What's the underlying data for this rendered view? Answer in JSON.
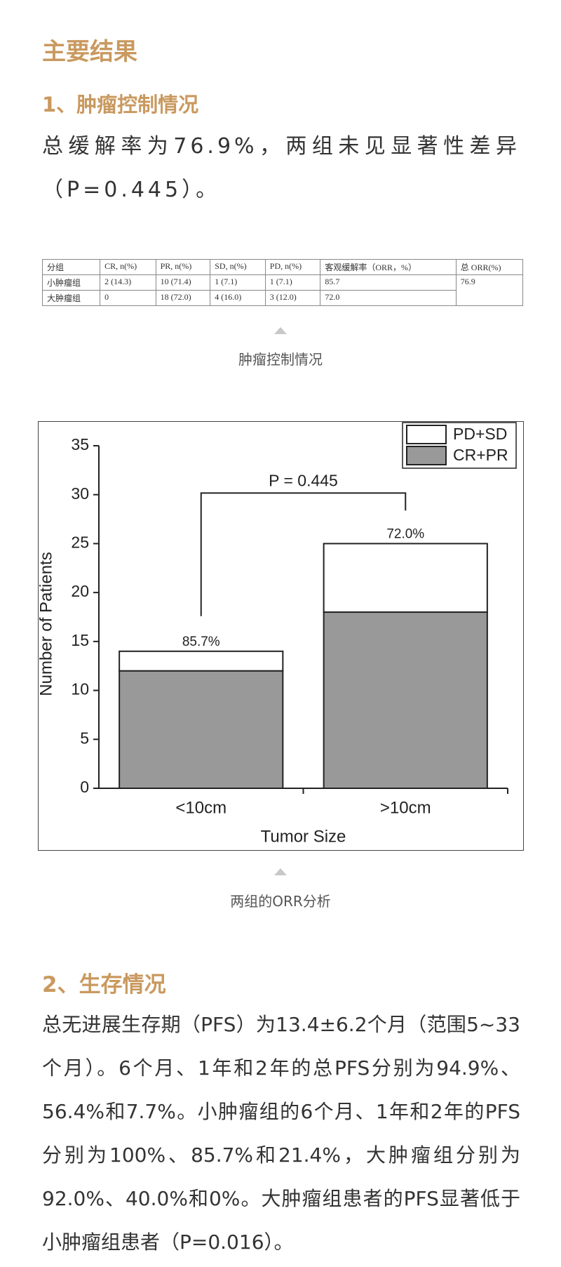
{
  "heading": "主要结果",
  "section1": {
    "title": "1、肿瘤控制情况",
    "paragraph": "总缓解率为76.9%，两组未见显著性差异（P=0.445）。"
  },
  "table": {
    "header": [
      "分组",
      "CR, n(%)",
      "PR, n(%)",
      "SD, n(%)",
      "PD, n(%)",
      "客观缓解率（ORR，%）",
      "总 ORR(%)"
    ],
    "rows": [
      [
        "小肿瘤组",
        "2 (14.3)",
        "10 (71.4)",
        "1 (7.1)",
        "1 (7.1)",
        "85.7",
        "76.9"
      ],
      [
        "大肿瘤组",
        "0",
        "18 (72.0)",
        "4 (16.0)",
        "3 (12.0)",
        "72.0"
      ]
    ]
  },
  "table_caption": "肿瘤控制情况",
  "chart_data": {
    "type": "bar",
    "stacked": true,
    "xlabel": "Tumor Size",
    "ylabel": "Number of Patients",
    "categories": [
      "<10cm",
      ">10cm"
    ],
    "series": [
      {
        "name": "CR+PR",
        "color": "#999999",
        "values": [
          12,
          18
        ]
      },
      {
        "name": "PD+SD",
        "color": "#ffffff",
        "values": [
          2,
          7
        ]
      }
    ],
    "ylim": [
      0,
      35
    ],
    "yticks": [
      0,
      5,
      10,
      15,
      20,
      25,
      30,
      35
    ],
    "top_labels": [
      "85.7%",
      "72.0%"
    ],
    "annotation": "P = 0.445",
    "legend": "upper right"
  },
  "chart_caption": "两组的ORR分析",
  "section2": {
    "title": "2、生存情况",
    "paragraph": "总无进展生存期（PFS）为13.4±6.2个月（范围5~33个月）。6个月、1年和2年的总PFS分别为94.9%、56.4%和7.7%。小肿瘤组的6个月、1年和2年的PFS分别为100%、85.7%和21.4%，大肿瘤组分别为92.0%、40.0%和0%。大肿瘤组患者的PFS显著低于小肿瘤组患者（P=0.016）。"
  }
}
